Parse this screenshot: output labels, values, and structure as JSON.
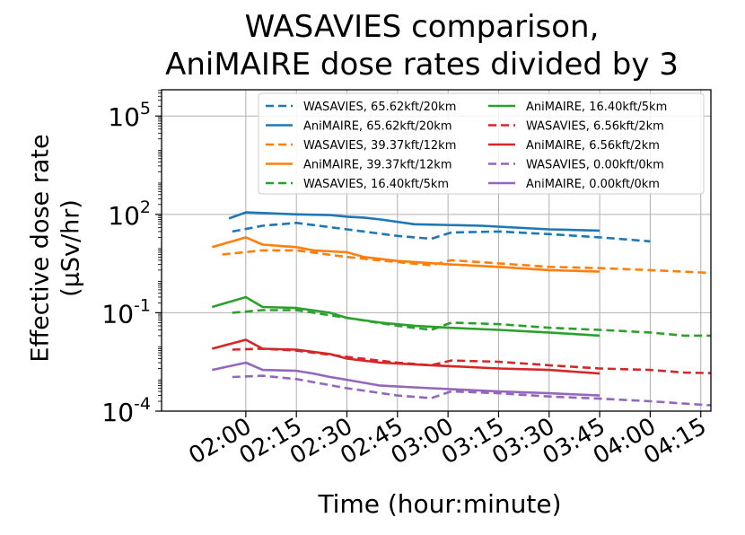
{
  "chart_data": {
    "type": "line",
    "title_line1": "WASAVIES comparison,",
    "title_line2": "AniMAIRE dose rates divided by 3",
    "xlabel": "Time (hour:minute)",
    "ylabel_line1": "Effective dose rate",
    "ylabel_line2": "(μSv/hr)",
    "x_range_minutes": [
      95,
      258
    ],
    "y_range_log10": [
      -4,
      5.8
    ],
    "yscale": "log",
    "grid": true,
    "legend_placement": "top-right",
    "x_ticks": [
      "02:00",
      "02:15",
      "02:30",
      "02:45",
      "03:00",
      "03:15",
      "03:30",
      "03:45",
      "04:00",
      "04:15"
    ],
    "y_ticks": [
      {
        "exp": "-4"
      },
      {
        "exp": "-1"
      },
      {
        "exp": "2"
      },
      {
        "exp": "5"
      }
    ],
    "series": [
      {
        "name": "WASAVIES, 65.62kft/20km",
        "color": "#1f77b4",
        "dash": true,
        "x": [
          116,
          125,
          135,
          150,
          165,
          175,
          181,
          195,
          210,
          225,
          240
        ],
        "y": [
          30,
          45,
          55,
          35,
          22,
          18,
          28,
          30,
          25,
          20,
          15
        ]
      },
      {
        "name": "AniMAIRE, 65.62kft/20km",
        "color": "#1f77b4",
        "dash": false,
        "x": [
          115,
          120,
          135,
          145,
          150,
          155,
          160,
          170,
          190,
          210,
          225
        ],
        "y": [
          75,
          115,
          100,
          95,
          85,
          80,
          70,
          50,
          45,
          35,
          32
        ]
      },
      {
        "name": "WASAVIES, 39.37kft/12km",
        "color": "#ff7f0e",
        "dash": true,
        "x": [
          113,
          125,
          135,
          150,
          165,
          175,
          181,
          195,
          210,
          225,
          240,
          255,
          268
        ],
        "y": [
          6,
          8,
          8,
          5,
          3.5,
          2.8,
          4,
          3.2,
          2.5,
          2.3,
          2,
          1.7,
          1.4
        ]
      },
      {
        "name": "AniMAIRE, 39.37kft/12km",
        "color": "#ff7f0e",
        "dash": false,
        "x": [
          110,
          120,
          125,
          135,
          140,
          150,
          155,
          165,
          180,
          195,
          210,
          225
        ],
        "y": [
          10,
          20,
          12,
          10,
          8,
          7,
          5,
          3.8,
          3,
          2.5,
          2,
          1.8
        ]
      },
      {
        "name": "WASAVIES, 16.40kft/5km",
        "color": "#2ca02c",
        "dash": true,
        "x": [
          116,
          125,
          135,
          150,
          165,
          175,
          181,
          195,
          210,
          225,
          240,
          250,
          263
        ],
        "y": [
          0.1,
          0.12,
          0.12,
          0.07,
          0.04,
          0.03,
          0.05,
          0.045,
          0.035,
          0.03,
          0.025,
          0.02,
          0.02
        ]
      },
      {
        "name": "AniMAIRE, 16.40kft/5km",
        "color": "#2ca02c",
        "dash": false,
        "x": [
          110,
          120,
          125,
          135,
          145,
          150,
          160,
          170,
          180,
          195,
          210,
          225
        ],
        "y": [
          0.15,
          0.3,
          0.15,
          0.14,
          0.1,
          0.07,
          0.05,
          0.04,
          0.035,
          0.03,
          0.025,
          0.02
        ]
      },
      {
        "name": "WASAVIES, 6.56kft/2km",
        "color": "#d62728",
        "dash": true,
        "x": [
          116,
          125,
          135,
          150,
          165,
          175,
          181,
          195,
          210,
          225,
          240,
          250,
          263
        ],
        "y": [
          0.0075,
          0.008,
          0.007,
          0.0045,
          0.003,
          0.0025,
          0.0035,
          0.0032,
          0.0025,
          0.002,
          0.0018,
          0.0015,
          0.0014
        ]
      },
      {
        "name": "AniMAIRE, 6.56kft/2km",
        "color": "#d62728",
        "dash": false,
        "x": [
          110,
          120,
          125,
          135,
          145,
          150,
          160,
          175,
          195,
          210,
          225
        ],
        "y": [
          0.008,
          0.015,
          0.008,
          0.0075,
          0.0055,
          0.004,
          0.003,
          0.0025,
          0.002,
          0.0018,
          0.0014
        ]
      },
      {
        "name": "WASAVIES, 0.00kft/0km",
        "color": "#9467bd",
        "dash": true,
        "x": [
          116,
          125,
          135,
          150,
          165,
          175,
          181,
          195,
          210,
          225,
          240,
          250,
          268
        ],
        "y": [
          0.0011,
          0.0012,
          0.00095,
          0.0005,
          0.0003,
          0.00025,
          0.0004,
          0.00035,
          0.00028,
          0.00024,
          0.0002,
          0.00017,
          0.00013
        ]
      },
      {
        "name": "AniMAIRE, 0.00kft/0km",
        "color": "#9467bd",
        "dash": false,
        "x": [
          110,
          120,
          125,
          135,
          140,
          145,
          150,
          160,
          175,
          195,
          210,
          225
        ],
        "y": [
          0.0018,
          0.003,
          0.0018,
          0.0017,
          0.0014,
          0.0011,
          0.0009,
          0.0006,
          0.0005,
          0.0004,
          0.00035,
          0.0003
        ]
      }
    ]
  }
}
